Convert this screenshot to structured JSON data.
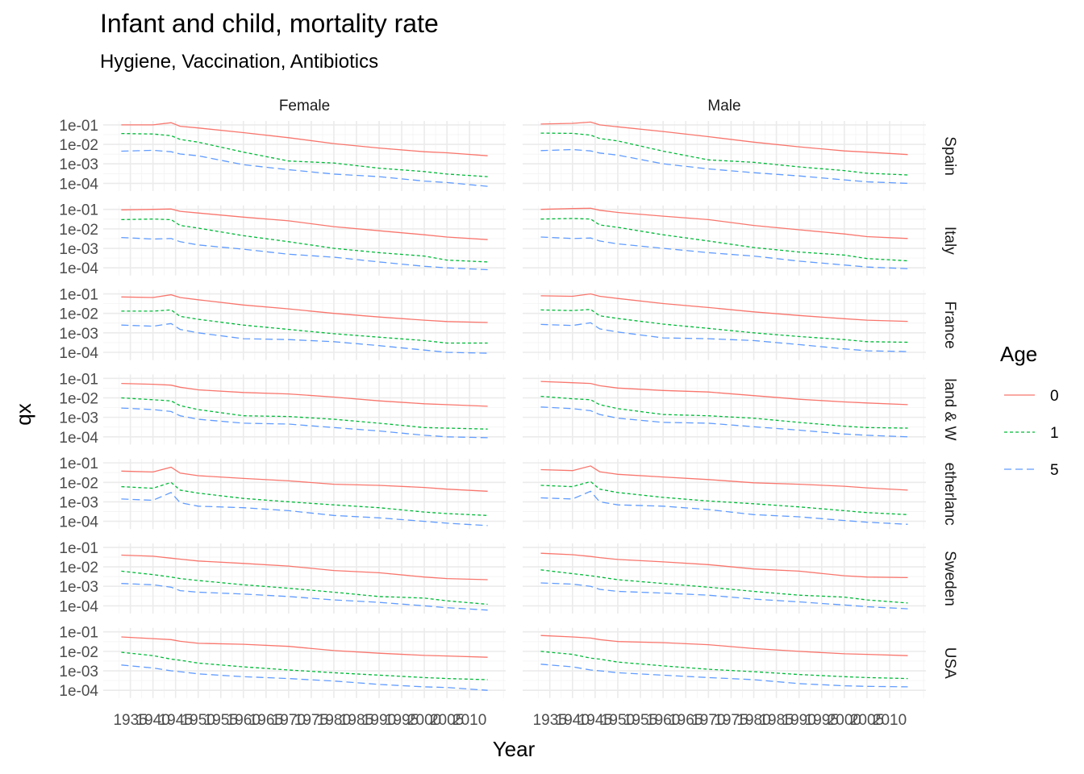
{
  "chart_data": {
    "type": "line",
    "title": "Infant and child, mortality rate",
    "subtitle": "Hygiene, Vaccination, Antibiotics",
    "xlabel": "Year",
    "ylabel": "qx",
    "y_scale": "log10",
    "ylim": [
      4e-05,
      0.16
    ],
    "y_ticks": [
      0.1,
      0.01,
      0.001,
      0.0001
    ],
    "y_tick_labels": [
      "1e-01",
      "1e-02",
      "1e-03",
      "1e-04"
    ],
    "xlim": [
      1929,
      2018
    ],
    "x_ticks": [
      1935,
      1940,
      1945,
      1950,
      1955,
      1960,
      1965,
      1970,
      1975,
      1980,
      1985,
      1990,
      1995,
      2000,
      2005,
      2010
    ],
    "x_tick_labels": [
      "1935",
      "1940",
      "1945",
      "1950",
      "1955",
      "1960",
      "1965",
      "1970",
      "1975",
      "1980",
      "1985",
      "1990",
      "1995",
      "2000",
      "2005",
      "2010"
    ],
    "facet_cols": [
      "Female",
      "Male"
    ],
    "facet_rows": [
      "Spain",
      "Italy",
      "France",
      "England & Wales",
      "Netherlands",
      "Sweden",
      "USA"
    ],
    "facet_row_labels": [
      "Spain",
      "Italy",
      "France",
      "land & W",
      "etherlanc",
      "Sweden",
      "USA"
    ],
    "legend": {
      "title": "Age",
      "position": "right",
      "entries": [
        "0",
        "1",
        "5"
      ]
    },
    "series_colors": {
      "0": "#F8766D",
      "1": "#00BA38",
      "5": "#619CFF"
    },
    "grid": true,
    "years": [
      1933,
      1940,
      1944,
      1946,
      1950,
      1960,
      1970,
      1980,
      1990,
      2000,
      2005,
      2014
    ],
    "panels": [
      {
        "country": "Spain",
        "sex": "Female",
        "series": [
          {
            "name": "0",
            "values": [
              0.1,
              0.1,
              0.13,
              0.085,
              0.07,
              0.04,
              0.022,
              0.011,
              0.0065,
              0.0042,
              0.0037,
              0.0026
            ]
          },
          {
            "name": "1",
            "values": [
              0.036,
              0.034,
              0.028,
              0.018,
              0.013,
              0.004,
              0.0014,
              0.0011,
              0.0006,
              0.0004,
              0.0003,
              0.00022
            ]
          },
          {
            "name": "5",
            "values": [
              0.0045,
              0.005,
              0.0042,
              0.0032,
              0.0026,
              0.0009,
              0.0005,
              0.0003,
              0.00022,
              0.00013,
              0.00011,
              7e-05
            ]
          }
        ]
      },
      {
        "country": "Spain",
        "sex": "Male",
        "series": [
          {
            "name": "0",
            "values": [
              0.11,
              0.12,
              0.14,
              0.1,
              0.08,
              0.046,
              0.025,
              0.013,
              0.0075,
              0.0046,
              0.004,
              0.003
            ]
          },
          {
            "name": "1",
            "values": [
              0.038,
              0.037,
              0.03,
              0.02,
              0.015,
              0.0045,
              0.0016,
              0.0012,
              0.0007,
              0.00045,
              0.00033,
              0.00027
            ]
          },
          {
            "name": "5",
            "values": [
              0.0048,
              0.0054,
              0.0046,
              0.0036,
              0.0028,
              0.001,
              0.00055,
              0.00035,
              0.00024,
              0.00015,
              0.00012,
              0.0001
            ]
          }
        ]
      },
      {
        "country": "Italy",
        "sex": "Female",
        "series": [
          {
            "name": "0",
            "values": [
              0.095,
              0.1,
              0.105,
              0.08,
              0.065,
              0.04,
              0.026,
              0.013,
              0.008,
              0.005,
              0.0038,
              0.0028
            ]
          },
          {
            "name": "1",
            "values": [
              0.03,
              0.032,
              0.03,
              0.015,
              0.011,
              0.0045,
              0.0022,
              0.001,
              0.0006,
              0.0004,
              0.00025,
              0.0002
            ]
          },
          {
            "name": "5",
            "values": [
              0.0036,
              0.003,
              0.0032,
              0.0022,
              0.0015,
              0.0009,
              0.0005,
              0.00035,
              0.0002,
              0.00012,
              0.0001,
              8e-05
            ]
          }
        ]
      },
      {
        "country": "Italy",
        "sex": "Male",
        "series": [
          {
            "name": "0",
            "values": [
              0.1,
              0.11,
              0.115,
              0.09,
              0.07,
              0.045,
              0.03,
              0.015,
              0.009,
              0.0055,
              0.004,
              0.0032
            ]
          },
          {
            "name": "1",
            "values": [
              0.032,
              0.034,
              0.032,
              0.016,
              0.012,
              0.005,
              0.0024,
              0.0011,
              0.00065,
              0.00045,
              0.0003,
              0.00023
            ]
          },
          {
            "name": "5",
            "values": [
              0.0038,
              0.0032,
              0.0034,
              0.0024,
              0.0017,
              0.001,
              0.0006,
              0.0004,
              0.00022,
              0.00014,
              0.00011,
              9e-05
            ]
          }
        ]
      },
      {
        "country": "France",
        "sex": "Female",
        "series": [
          {
            "name": "0",
            "values": [
              0.07,
              0.065,
              0.09,
              0.065,
              0.05,
              0.027,
              0.017,
              0.01,
              0.0065,
              0.0045,
              0.0038,
              0.0034
            ]
          },
          {
            "name": "1",
            "values": [
              0.013,
              0.013,
              0.015,
              0.007,
              0.005,
              0.0025,
              0.0015,
              0.0009,
              0.0006,
              0.0004,
              0.0003,
              0.0003
            ]
          },
          {
            "name": "5",
            "values": [
              0.0025,
              0.0022,
              0.003,
              0.0015,
              0.001,
              0.0005,
              0.00045,
              0.00035,
              0.00022,
              0.00013,
              0.0001,
              9e-05
            ]
          }
        ]
      },
      {
        "country": "France",
        "sex": "Male",
        "series": [
          {
            "name": "0",
            "values": [
              0.08,
              0.075,
              0.1,
              0.075,
              0.058,
              0.032,
              0.02,
              0.012,
              0.0078,
              0.0053,
              0.0045,
              0.0039
            ]
          },
          {
            "name": "1",
            "values": [
              0.015,
              0.014,
              0.016,
              0.0075,
              0.0055,
              0.0028,
              0.0017,
              0.001,
              0.00065,
              0.00045,
              0.00035,
              0.00033
            ]
          },
          {
            "name": "5",
            "values": [
              0.0027,
              0.0024,
              0.0033,
              0.0016,
              0.0011,
              0.00055,
              0.0005,
              0.0004,
              0.00025,
              0.00015,
              0.00012,
              0.00011
            ]
          }
        ]
      },
      {
        "country": "England & Wales",
        "sex": "Female",
        "series": [
          {
            "name": "0",
            "values": [
              0.055,
              0.05,
              0.045,
              0.035,
              0.026,
              0.019,
              0.016,
              0.011,
              0.007,
              0.005,
              0.0045,
              0.0037
            ]
          },
          {
            "name": "1",
            "values": [
              0.01,
              0.008,
              0.007,
              0.004,
              0.0025,
              0.0012,
              0.0011,
              0.0008,
              0.0005,
              0.0003,
              0.00028,
              0.00025
            ]
          },
          {
            "name": "5",
            "values": [
              0.003,
              0.0025,
              0.002,
              0.0012,
              0.0008,
              0.0005,
              0.00045,
              0.0003,
              0.0002,
              0.00012,
              0.0001,
              9e-05
            ]
          }
        ]
      },
      {
        "country": "England & Wales",
        "sex": "Male",
        "series": [
          {
            "name": "0",
            "values": [
              0.07,
              0.06,
              0.055,
              0.042,
              0.032,
              0.024,
              0.02,
              0.013,
              0.0085,
              0.0062,
              0.0055,
              0.0045
            ]
          },
          {
            "name": "1",
            "values": [
              0.012,
              0.009,
              0.008,
              0.0045,
              0.0028,
              0.0014,
              0.0012,
              0.0009,
              0.00055,
              0.00035,
              0.0003,
              0.00028
            ]
          },
          {
            "name": "5",
            "values": [
              0.0034,
              0.0028,
              0.0022,
              0.0014,
              0.0009,
              0.00055,
              0.0005,
              0.00033,
              0.00022,
              0.00014,
              0.00012,
              0.0001
            ]
          }
        ]
      },
      {
        "country": "Netherlands",
        "sex": "Female",
        "series": [
          {
            "name": "0",
            "values": [
              0.038,
              0.034,
              0.06,
              0.03,
              0.022,
              0.016,
              0.012,
              0.008,
              0.007,
              0.0055,
              0.0045,
              0.0035
            ]
          },
          {
            "name": "1",
            "values": [
              0.006,
              0.005,
              0.01,
              0.004,
              0.0028,
              0.0015,
              0.001,
              0.0007,
              0.0005,
              0.0003,
              0.00025,
              0.0002
            ]
          },
          {
            "name": "5",
            "values": [
              0.0014,
              0.0012,
              0.003,
              0.0009,
              0.0006,
              0.0005,
              0.00035,
              0.0002,
              0.00015,
              0.0001,
              8e-05,
              6e-05
            ]
          }
        ]
      },
      {
        "country": "Netherlands",
        "sex": "Male",
        "series": [
          {
            "name": "0",
            "values": [
              0.045,
              0.04,
              0.07,
              0.035,
              0.026,
              0.019,
              0.014,
              0.0095,
              0.008,
              0.0063,
              0.0052,
              0.004
            ]
          },
          {
            "name": "1",
            "values": [
              0.007,
              0.006,
              0.011,
              0.0045,
              0.003,
              0.0017,
              0.0011,
              0.0008,
              0.00055,
              0.00035,
              0.00028,
              0.00022
            ]
          },
          {
            "name": "5",
            "values": [
              0.0016,
              0.0014,
              0.0035,
              0.001,
              0.0007,
              0.0006,
              0.0004,
              0.00022,
              0.00017,
              0.00011,
              9e-05,
              7e-05
            ]
          }
        ]
      },
      {
        "country": "Sweden",
        "sex": "Female",
        "series": [
          {
            "name": "0",
            "values": [
              0.04,
              0.035,
              0.028,
              0.025,
              0.02,
              0.015,
              0.011,
              0.0065,
              0.005,
              0.003,
              0.0025,
              0.0022
            ]
          },
          {
            "name": "1",
            "values": [
              0.006,
              0.004,
              0.003,
              0.0025,
              0.002,
              0.0012,
              0.0008,
              0.0005,
              0.0003,
              0.00025,
              0.00018,
              0.00012
            ]
          },
          {
            "name": "5",
            "values": [
              0.0014,
              0.0012,
              0.0009,
              0.0006,
              0.0005,
              0.0004,
              0.0003,
              0.0002,
              0.00015,
              0.0001,
              8e-05,
              6e-05
            ]
          }
        ]
      },
      {
        "country": "Sweden",
        "sex": "Male",
        "series": [
          {
            "name": "0",
            "values": [
              0.05,
              0.042,
              0.034,
              0.03,
              0.024,
              0.018,
              0.013,
              0.0078,
              0.006,
              0.0035,
              0.003,
              0.0028
            ]
          },
          {
            "name": "1",
            "values": [
              0.007,
              0.0045,
              0.0035,
              0.003,
              0.0022,
              0.0014,
              0.0009,
              0.00055,
              0.00035,
              0.00028,
              0.0002,
              0.00014
            ]
          },
          {
            "name": "5",
            "values": [
              0.0015,
              0.0013,
              0.001,
              0.0007,
              0.00055,
              0.00045,
              0.00035,
              0.00022,
              0.00016,
              0.00011,
              9e-05,
              7e-05
            ]
          }
        ]
      },
      {
        "country": "USA",
        "sex": "Female",
        "series": [
          {
            "name": "0",
            "values": [
              0.055,
              0.045,
              0.04,
              0.033,
              0.026,
              0.023,
              0.018,
              0.011,
              0.008,
              0.0062,
              0.0058,
              0.005
            ]
          },
          {
            "name": "1",
            "values": [
              0.009,
              0.006,
              0.004,
              0.0035,
              0.0025,
              0.0016,
              0.0011,
              0.0008,
              0.0006,
              0.00045,
              0.0004,
              0.00035
            ]
          },
          {
            "name": "5",
            "values": [
              0.002,
              0.0014,
              0.001,
              0.0009,
              0.0007,
              0.0005,
              0.0004,
              0.0003,
              0.0002,
              0.00015,
              0.00014,
              0.0001
            ]
          }
        ]
      },
      {
        "country": "USA",
        "sex": "Male",
        "series": [
          {
            "name": "0",
            "values": [
              0.065,
              0.055,
              0.048,
              0.04,
              0.032,
              0.028,
              0.022,
              0.014,
              0.01,
              0.0075,
              0.007,
              0.006
            ]
          },
          {
            "name": "1",
            "values": [
              0.01,
              0.007,
              0.0045,
              0.004,
              0.0028,
              0.0018,
              0.0012,
              0.0009,
              0.00065,
              0.0005,
              0.00045,
              0.0004
            ]
          },
          {
            "name": "5",
            "values": [
              0.0022,
              0.0016,
              0.0011,
              0.001,
              0.0008,
              0.0006,
              0.00045,
              0.00035,
              0.00022,
              0.00017,
              0.00016,
              0.00015
            ]
          }
        ]
      }
    ]
  }
}
